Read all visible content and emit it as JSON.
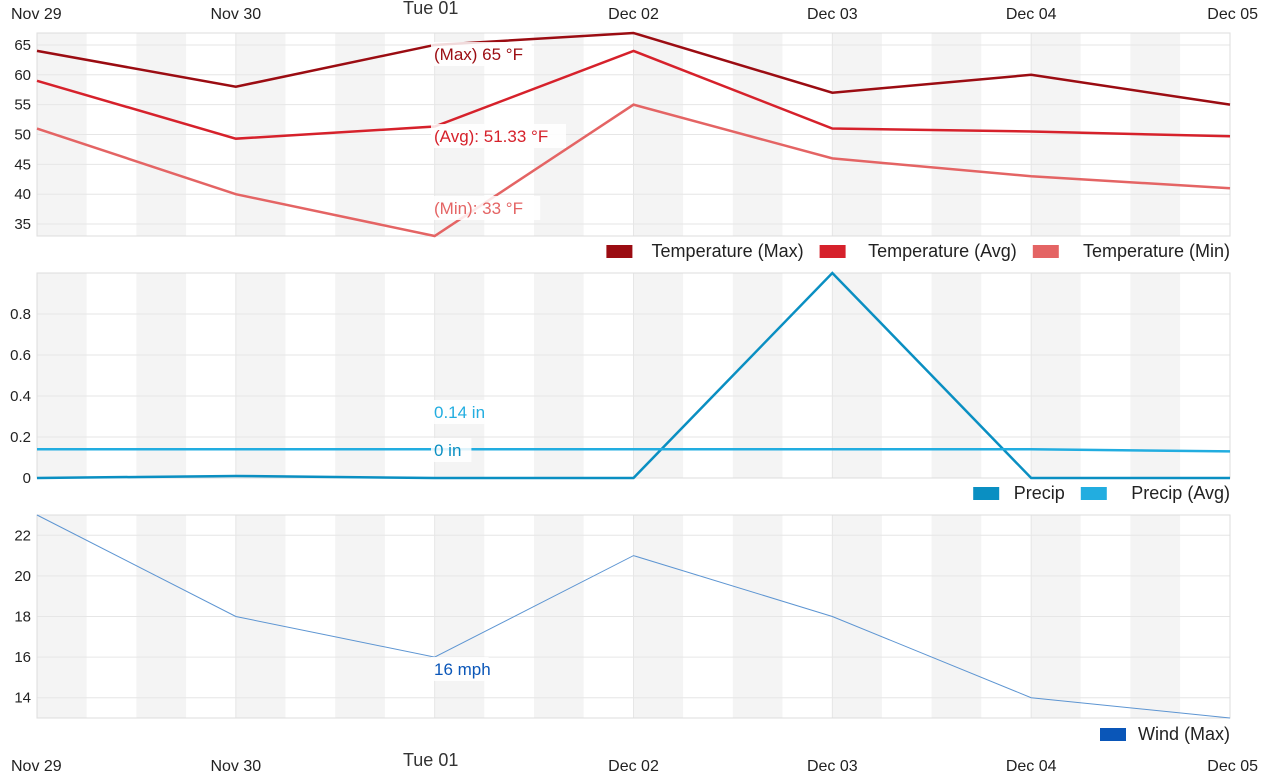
{
  "colors": {
    "temp_max": "#9b0c12",
    "temp_avg": "#d6212b",
    "temp_min": "#e46464",
    "precip": "#0a8fc2",
    "precip_avg": "#22ade0",
    "wind": "#0a56b8",
    "wind_line": "#5d95d2",
    "grid": "#e6e6e6",
    "band": "#f4f4f4"
  },
  "chart_data": {
    "type": "line",
    "x": [
      "Nov 29",
      "Nov 30",
      "Dec 01",
      "Dec 02",
      "Dec 03",
      "Dec 04",
      "Dec 05"
    ],
    "x_tick_labels": [
      "Nov 29",
      "Nov 30",
      "Dec 02",
      "Dec 03",
      "Dec 04",
      "Dec 05"
    ],
    "hover_label": "Tue 01",
    "grid": true,
    "panels": [
      {
        "name": "temperature",
        "ylim": [
          33,
          67
        ],
        "yticks": [
          35,
          40,
          45,
          50,
          55,
          60,
          65
        ],
        "legend_position": "bottom-right",
        "series": [
          {
            "name": "Temperature (Max)",
            "color_key": "temp_max",
            "values": [
              64,
              58,
              65,
              67,
              57,
              60,
              55
            ],
            "hover_label": "(Max) 65 °F"
          },
          {
            "name": "Temperature (Avg)",
            "color_key": "temp_avg",
            "values": [
              59,
              49.3,
              51.33,
              64,
              51,
              50.5,
              49.7
            ],
            "hover_label": "(Avg): 51.33 °F"
          },
          {
            "name": "Temperature (Min)",
            "color_key": "temp_min",
            "values": [
              51,
              40,
              33,
              55,
              46,
              43,
              41
            ],
            "hover_label": "(Min): 33 °F"
          }
        ]
      },
      {
        "name": "precipitation",
        "ylim": [
          0,
          1
        ],
        "yticks": [
          0,
          0.2,
          0.4,
          0.6,
          0.8
        ],
        "legend_position": "bottom-right",
        "series": [
          {
            "name": "Precip",
            "color_key": "precip",
            "values": [
              0,
              0.01,
              0,
              0,
              1.0,
              0,
              0
            ],
            "hover_label": "0 in"
          },
          {
            "name": "Precip (Avg)",
            "color_key": "precip_avg",
            "values": [
              0.14,
              0.14,
              0.14,
              0.14,
              0.14,
              0.14,
              0.13
            ],
            "hover_label": "0.14 in"
          }
        ]
      },
      {
        "name": "wind",
        "ylim": [
          13,
          23
        ],
        "yticks": [
          14,
          16,
          18,
          20,
          22
        ],
        "legend_position": "bottom-right",
        "series": [
          {
            "name": "Wind (Max)",
            "color_key": "wind",
            "values": [
              23,
              18,
              16,
              21,
              18,
              14,
              13
            ],
            "hover_label": "16 mph"
          }
        ]
      }
    ]
  }
}
